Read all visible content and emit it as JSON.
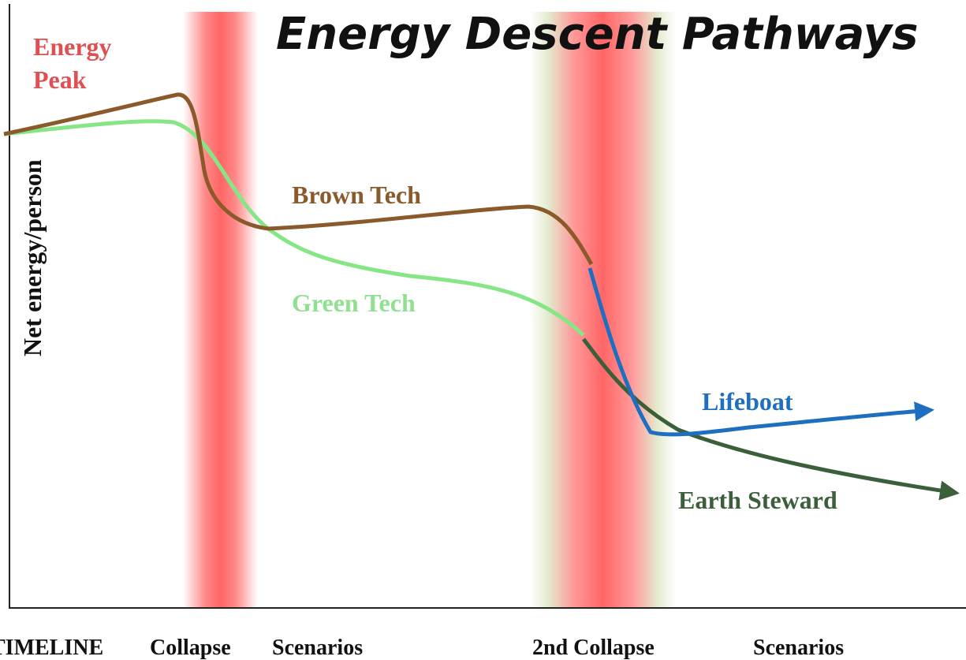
{
  "title": "Energy Descent Pathways",
  "y_axis_label": "Net energy/person",
  "annotations": {
    "energy_peak": [
      "Energy",
      "Peak"
    ],
    "brown_tech": "Brown Tech",
    "green_tech": "Green Tech",
    "lifeboat": "Lifeboat",
    "earth_steward": "Earth Steward"
  },
  "timeline": [
    "TIMELINE",
    "Collapse",
    "Scenarios",
    "2nd Collapse",
    "Scenarios"
  ]
}
